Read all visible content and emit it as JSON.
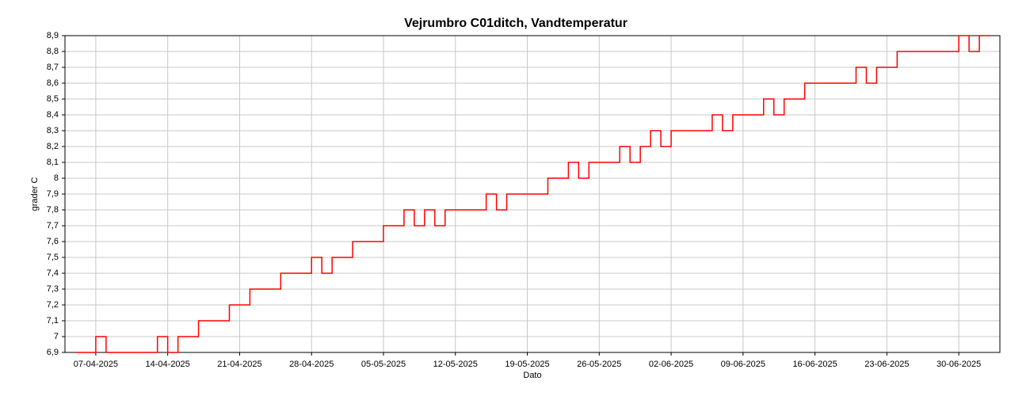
{
  "chart_data": {
    "type": "line",
    "step": true,
    "title": "Vejrumbro C01ditch, Vandtemperatur",
    "x_label": "Dato",
    "y_label": "grader C",
    "grid": true,
    "x": [
      "2025-04-05",
      "2025-04-06",
      "2025-04-07",
      "2025-04-08",
      "2025-04-09",
      "2025-04-10",
      "2025-04-11",
      "2025-04-12",
      "2025-04-13",
      "2025-04-14",
      "2025-04-15",
      "2025-04-16",
      "2025-04-17",
      "2025-04-18",
      "2025-04-19",
      "2025-04-20",
      "2025-04-21",
      "2025-04-22",
      "2025-04-23",
      "2025-04-24",
      "2025-04-25",
      "2025-04-26",
      "2025-04-27",
      "2025-04-28",
      "2025-04-29",
      "2025-04-30",
      "2025-05-01",
      "2025-05-02",
      "2025-05-03",
      "2025-05-04",
      "2025-05-05",
      "2025-05-06",
      "2025-05-07",
      "2025-05-08",
      "2025-05-09",
      "2025-05-10",
      "2025-05-11",
      "2025-05-12",
      "2025-05-13",
      "2025-05-14",
      "2025-05-15",
      "2025-05-16",
      "2025-05-17",
      "2025-05-18",
      "2025-05-19",
      "2025-05-20",
      "2025-05-21",
      "2025-05-22",
      "2025-05-23",
      "2025-05-24",
      "2025-05-25",
      "2025-05-26",
      "2025-05-27",
      "2025-05-28",
      "2025-05-29",
      "2025-05-30",
      "2025-05-31",
      "2025-06-01",
      "2025-06-02",
      "2025-06-03",
      "2025-06-04",
      "2025-06-05",
      "2025-06-06",
      "2025-06-07",
      "2025-06-08",
      "2025-06-09",
      "2025-06-10",
      "2025-06-11",
      "2025-06-12",
      "2025-06-13",
      "2025-06-14",
      "2025-06-15",
      "2025-06-16",
      "2025-06-17",
      "2025-06-18",
      "2025-06-19",
      "2025-06-20",
      "2025-06-21",
      "2025-06-22",
      "2025-06-23",
      "2025-06-24",
      "2025-06-25",
      "2025-06-26",
      "2025-06-27",
      "2025-06-28",
      "2025-06-29",
      "2025-06-30",
      "2025-07-01",
      "2025-07-02",
      "2025-07-03"
    ],
    "series": [
      {
        "name": "Vandtemperatur",
        "color": "#ff0000",
        "values": [
          6.9,
          6.9,
          7.0,
          6.9,
          6.9,
          6.9,
          6.9,
          6.9,
          7.0,
          6.9,
          7.0,
          7.0,
          7.1,
          7.1,
          7.1,
          7.2,
          7.2,
          7.3,
          7.3,
          7.3,
          7.4,
          7.4,
          7.4,
          7.5,
          7.4,
          7.5,
          7.5,
          7.6,
          7.6,
          7.6,
          7.7,
          7.7,
          7.8,
          7.7,
          7.8,
          7.7,
          7.8,
          7.8,
          7.8,
          7.8,
          7.9,
          7.8,
          7.9,
          7.9,
          7.9,
          7.9,
          8.0,
          8.0,
          8.1,
          8.0,
          8.1,
          8.1,
          8.1,
          8.2,
          8.1,
          8.2,
          8.3,
          8.2,
          8.3,
          8.3,
          8.3,
          8.3,
          8.4,
          8.3,
          8.4,
          8.4,
          8.4,
          8.5,
          8.4,
          8.5,
          8.5,
          8.6,
          8.6,
          8.6,
          8.6,
          8.6,
          8.7,
          8.6,
          8.7,
          8.7,
          8.8,
          8.8,
          8.8,
          8.8,
          8.8,
          8.8,
          8.9,
          8.8,
          8.9,
          8.9
        ]
      }
    ],
    "xlim": [
      "2025-04-04",
      "2025-07-04"
    ],
    "xticks": [
      {
        "value": "2025-04-07",
        "label": "07-04-2025"
      },
      {
        "value": "2025-04-14",
        "label": "14-04-2025"
      },
      {
        "value": "2025-04-21",
        "label": "21-04-2025"
      },
      {
        "value": "2025-04-28",
        "label": "28-04-2025"
      },
      {
        "value": "2025-05-05",
        "label": "05-05-2025"
      },
      {
        "value": "2025-05-12",
        "label": "12-05-2025"
      },
      {
        "value": "2025-05-19",
        "label": "19-05-2025"
      },
      {
        "value": "2025-05-26",
        "label": "26-05-2025"
      },
      {
        "value": "2025-06-02",
        "label": "02-06-2025"
      },
      {
        "value": "2025-06-09",
        "label": "09-06-2025"
      },
      {
        "value": "2025-06-16",
        "label": "16-06-2025"
      },
      {
        "value": "2025-06-23",
        "label": "23-06-2025"
      },
      {
        "value": "2025-06-30",
        "label": "30-06-2025"
      }
    ],
    "ylim": [
      6.9,
      8.9
    ],
    "yticks": [
      {
        "value": 6.9,
        "label": "6,9"
      },
      7,
      {
        "value": 7.1,
        "label": "7,1"
      },
      {
        "value": 7.2,
        "label": "7,2"
      },
      {
        "value": 7.3,
        "label": "7,3"
      },
      {
        "value": 7.4,
        "label": "7,4"
      },
      {
        "value": 7.5,
        "label": "7,5"
      },
      {
        "value": 7.6,
        "label": "7,6"
      },
      {
        "value": 7.7,
        "label": "7,7"
      },
      {
        "value": 7.8,
        "label": "7,8"
      },
      {
        "value": 7.9,
        "label": "7,9"
      },
      8,
      {
        "value": 8.1,
        "label": "8,1"
      },
      {
        "value": 8.2,
        "label": "8,2"
      },
      {
        "value": 8.3,
        "label": "8,3"
      },
      {
        "value": 8.4,
        "label": "8,4"
      },
      {
        "value": 8.5,
        "label": "8,5"
      },
      {
        "value": 8.6,
        "label": "8,6"
      },
      {
        "value": 8.7,
        "label": "8,7"
      },
      {
        "value": 8.8,
        "label": "8,8"
      },
      {
        "value": 8.9,
        "label": "8,9"
      }
    ]
  }
}
